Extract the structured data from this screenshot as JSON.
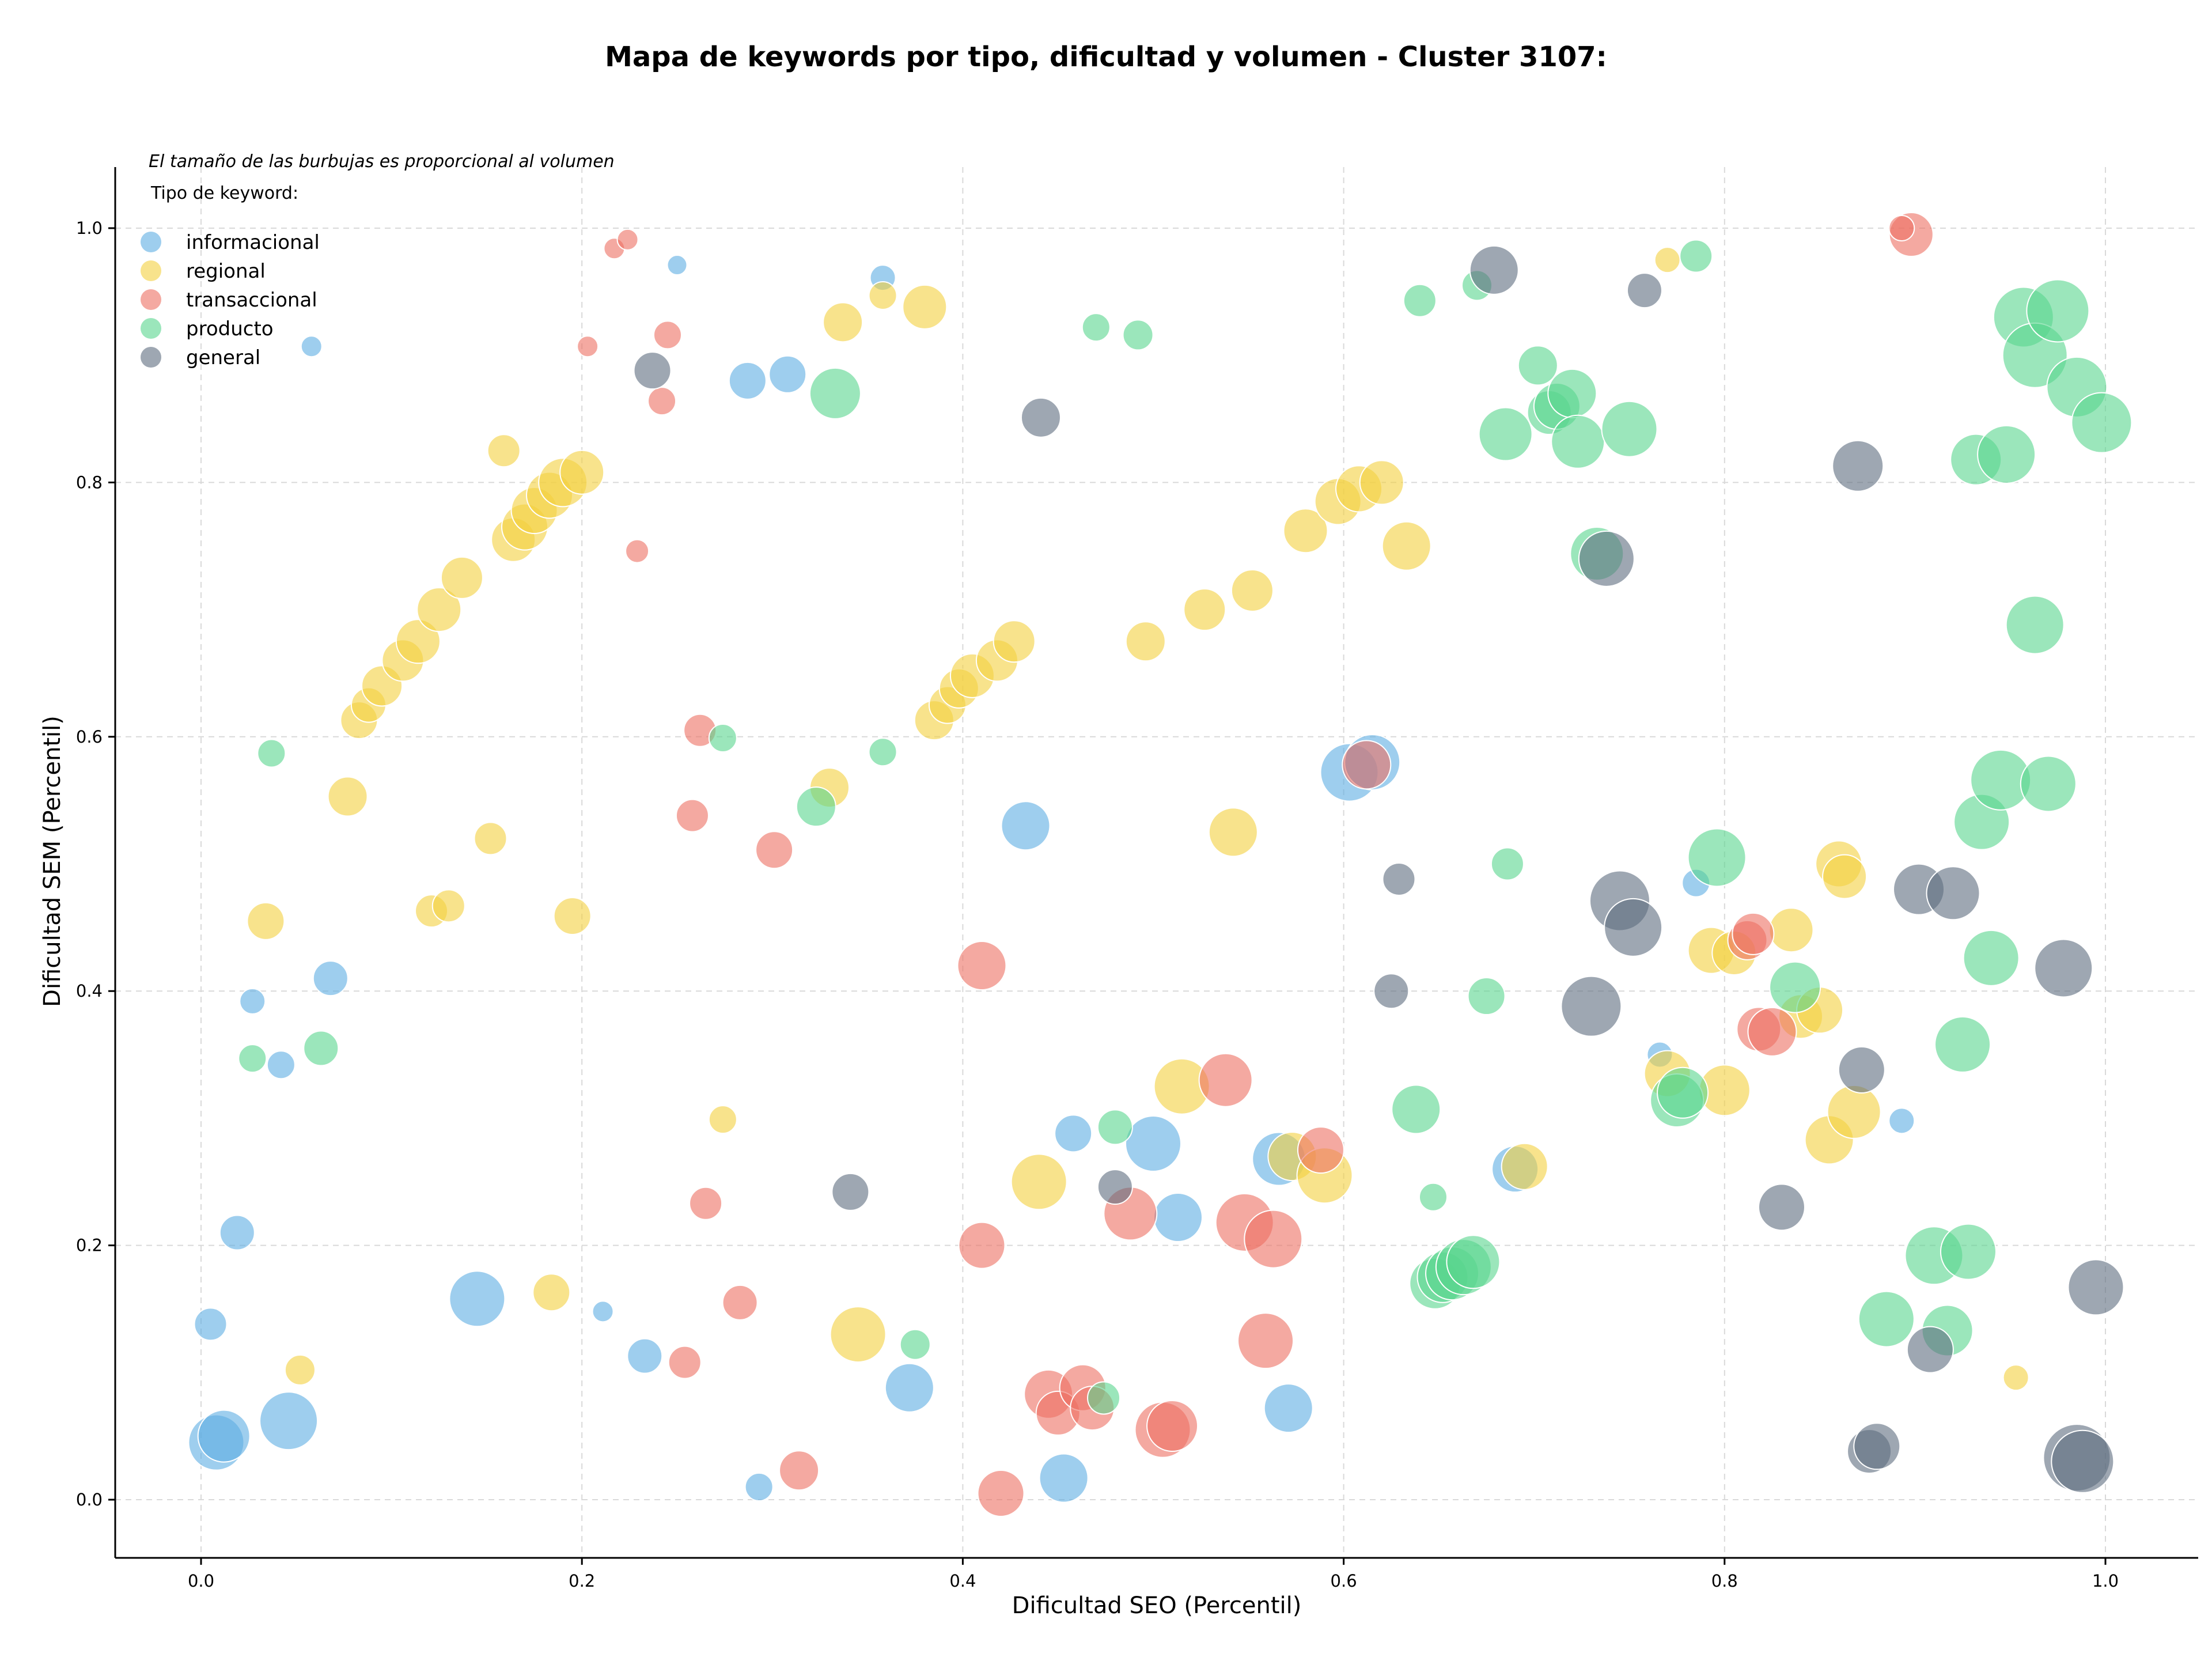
{
  "chart_data": {
    "type": "scatter",
    "title": "Mapa de keywords por tipo, dificultad y volumen - Cluster 3107:",
    "xlabel": "Dificultad SEO (Percentil)",
    "ylabel": "Dificultad SEM (Percentil)",
    "xlim": [
      -0.045,
      1.05
    ],
    "ylim": [
      -0.045,
      1.05
    ],
    "xticks": [
      "0.0",
      "0.2",
      "0.4",
      "0.6",
      "0.8",
      "1.0"
    ],
    "yticks": [
      "0.0",
      "0.2",
      "0.4",
      "0.6",
      "0.8",
      "1.0"
    ],
    "grid": true,
    "legend_position": "upper-left",
    "legend_note": "El tamaño de las burbujas es proporcional al volumen",
    "legend_title": "Tipo de keyword:",
    "series": [
      {
        "name": "informacional",
        "color": "#5DADE2",
        "points": [
          [
            0.008,
            0.045,
            48
          ],
          [
            0.012,
            0.05,
            45
          ],
          [
            0.046,
            0.062,
            50
          ],
          [
            0.145,
            0.158,
            48
          ],
          [
            0.005,
            0.138,
            28
          ],
          [
            0.019,
            0.21,
            30
          ],
          [
            0.027,
            0.392,
            22
          ],
          [
            0.042,
            0.342,
            24
          ],
          [
            0.068,
            0.41,
            30
          ],
          [
            0.058,
            0.907,
            18
          ],
          [
            0.25,
            0.971,
            17
          ],
          [
            0.287,
            0.88,
            32
          ],
          [
            0.308,
            0.885,
            32
          ],
          [
            0.358,
            0.961,
            22
          ],
          [
            0.211,
            0.148,
            18
          ],
          [
            0.233,
            0.113,
            30
          ],
          [
            0.293,
            0.01,
            24
          ],
          [
            0.372,
            0.088,
            42
          ],
          [
            0.433,
            0.53,
            42
          ],
          [
            0.453,
            0.017,
            42
          ],
          [
            0.458,
            0.288,
            32
          ],
          [
            0.5,
            0.28,
            48
          ],
          [
            0.513,
            0.222,
            42
          ],
          [
            0.566,
            0.268,
            46
          ],
          [
            0.571,
            0.072,
            42
          ],
          [
            0.603,
            0.572,
            50
          ],
          [
            0.615,
            0.58,
            48
          ],
          [
            0.69,
            0.26,
            40
          ],
          [
            0.766,
            0.35,
            22
          ],
          [
            0.785,
            0.485,
            24
          ],
          [
            0.893,
            0.298,
            22
          ]
        ]
      },
      {
        "name": "regional",
        "color": "#F4D03F",
        "points": [
          [
            0.034,
            0.455,
            32
          ],
          [
            0.052,
            0.102,
            26
          ],
          [
            0.077,
            0.553,
            34
          ],
          [
            0.083,
            0.613,
            32
          ],
          [
            0.088,
            0.625,
            30
          ],
          [
            0.095,
            0.64,
            35
          ],
          [
            0.106,
            0.66,
            36
          ],
          [
            0.114,
            0.675,
            38
          ],
          [
            0.125,
            0.7,
            38
          ],
          [
            0.137,
            0.725,
            36
          ],
          [
            0.152,
            0.52,
            28
          ],
          [
            0.159,
            0.825,
            28
          ],
          [
            0.164,
            0.755,
            38
          ],
          [
            0.17,
            0.765,
            40
          ],
          [
            0.175,
            0.778,
            40
          ],
          [
            0.183,
            0.79,
            40
          ],
          [
            0.19,
            0.8,
            42
          ],
          [
            0.2,
            0.808,
            38
          ],
          [
            0.121,
            0.463,
            28
          ],
          [
            0.13,
            0.467,
            28
          ],
          [
            0.195,
            0.459,
            32
          ],
          [
            0.184,
            0.163,
            32
          ],
          [
            0.274,
            0.299,
            24
          ],
          [
            0.33,
            0.56,
            34
          ],
          [
            0.337,
            0.926,
            34
          ],
          [
            0.358,
            0.947,
            24
          ],
          [
            0.38,
            0.938,
            38
          ],
          [
            0.345,
            0.13,
            48
          ],
          [
            0.385,
            0.613,
            34
          ],
          [
            0.392,
            0.625,
            32
          ],
          [
            0.398,
            0.638,
            34
          ],
          [
            0.405,
            0.648,
            38
          ],
          [
            0.418,
            0.66,
            36
          ],
          [
            0.427,
            0.675,
            36
          ],
          [
            0.44,
            0.25,
            48
          ],
          [
            0.496,
            0.675,
            34
          ],
          [
            0.515,
            0.325,
            48
          ],
          [
            0.527,
            0.7,
            36
          ],
          [
            0.542,
            0.525,
            42
          ],
          [
            0.552,
            0.715,
            36
          ],
          [
            0.58,
            0.762,
            38
          ],
          [
            0.597,
            0.785,
            40
          ],
          [
            0.608,
            0.795,
            40
          ],
          [
            0.62,
            0.8,
            38
          ],
          [
            0.633,
            0.75,
            42
          ],
          [
            0.573,
            0.27,
            42
          ],
          [
            0.59,
            0.255,
            48
          ],
          [
            0.695,
            0.262,
            40
          ],
          [
            0.77,
            0.975,
            22
          ],
          [
            0.77,
            0.335,
            40
          ],
          [
            0.793,
            0.432,
            40
          ],
          [
            0.8,
            0.322,
            44
          ],
          [
            0.805,
            0.43,
            38
          ],
          [
            0.835,
            0.448,
            38
          ],
          [
            0.84,
            0.38,
            38
          ],
          [
            0.85,
            0.385,
            40
          ],
          [
            0.855,
            0.283,
            42
          ],
          [
            0.86,
            0.5,
            40
          ],
          [
            0.863,
            0.49,
            38
          ],
          [
            0.868,
            0.305,
            46
          ],
          [
            0.953,
            0.096,
            22
          ]
        ]
      },
      {
        "name": "transaccional",
        "color": "#EC7063",
        "points": [
          [
            0.217,
            0.984,
            18
          ],
          [
            0.224,
            0.991,
            18
          ],
          [
            0.203,
            0.907,
            18
          ],
          [
            0.245,
            0.916,
            24
          ],
          [
            0.242,
            0.864,
            24
          ],
          [
            0.229,
            0.746,
            20
          ],
          [
            0.262,
            0.605,
            28
          ],
          [
            0.258,
            0.538,
            28
          ],
          [
            0.301,
            0.511,
            32
          ],
          [
            0.265,
            0.233,
            28
          ],
          [
            0.283,
            0.155,
            30
          ],
          [
            0.254,
            0.108,
            28
          ],
          [
            0.314,
            0.023,
            34
          ],
          [
            0.41,
            0.42,
            42
          ],
          [
            0.41,
            0.2,
            40
          ],
          [
            0.42,
            0.005,
            40
          ],
          [
            0.445,
            0.083,
            42
          ],
          [
            0.45,
            0.068,
            38
          ],
          [
            0.463,
            0.088,
            40
          ],
          [
            0.468,
            0.072,
            38
          ],
          [
            0.488,
            0.225,
            46
          ],
          [
            0.505,
            0.055,
            48
          ],
          [
            0.51,
            0.058,
            44
          ],
          [
            0.538,
            0.33,
            46
          ],
          [
            0.548,
            0.218,
            50
          ],
          [
            0.563,
            0.205,
            50
          ],
          [
            0.559,
            0.125,
            48
          ],
          [
            0.588,
            0.275,
            40
          ],
          [
            0.612,
            0.578,
            42
          ],
          [
            0.812,
            0.44,
            34
          ],
          [
            0.815,
            0.445,
            36
          ],
          [
            0.818,
            0.37,
            38
          ],
          [
            0.825,
            0.368,
            42
          ],
          [
            0.898,
            0.995,
            38
          ],
          [
            0.893,
            1.0,
            22
          ]
        ]
      },
      {
        "name": "producto",
        "color": "#58D68D",
        "points": [
          [
            0.037,
            0.587,
            24
          ],
          [
            0.027,
            0.347,
            24
          ],
          [
            0.063,
            0.355,
            30
          ],
          [
            0.274,
            0.599,
            24
          ],
          [
            0.333,
            0.87,
            44
          ],
          [
            0.323,
            0.545,
            34
          ],
          [
            0.358,
            0.588,
            24
          ],
          [
            0.375,
            0.122,
            26
          ],
          [
            0.47,
            0.922,
            24
          ],
          [
            0.492,
            0.916,
            26
          ],
          [
            0.48,
            0.293,
            30
          ],
          [
            0.474,
            0.08,
            28
          ],
          [
            0.64,
            0.943,
            28
          ],
          [
            0.67,
            0.955,
            26
          ],
          [
            0.685,
            0.838,
            46
          ],
          [
            0.702,
            0.892,
            34
          ],
          [
            0.708,
            0.855,
            38
          ],
          [
            0.712,
            0.86,
            40
          ],
          [
            0.72,
            0.87,
            42
          ],
          [
            0.723,
            0.832,
            46
          ],
          [
            0.75,
            0.842,
            48
          ],
          [
            0.733,
            0.744,
            46
          ],
          [
            0.785,
            0.978,
            28
          ],
          [
            0.638,
            0.307,
            42
          ],
          [
            0.647,
            0.238,
            24
          ],
          [
            0.675,
            0.396,
            32
          ],
          [
            0.686,
            0.5,
            28
          ],
          [
            0.648,
            0.17,
            44
          ],
          [
            0.652,
            0.175,
            44
          ],
          [
            0.657,
            0.178,
            46
          ],
          [
            0.663,
            0.183,
            48
          ],
          [
            0.668,
            0.187,
            46
          ],
          [
            0.775,
            0.314,
            46
          ],
          [
            0.778,
            0.32,
            44
          ],
          [
            0.796,
            0.505,
            50
          ],
          [
            0.837,
            0.403,
            44
          ],
          [
            0.885,
            0.142,
            48
          ],
          [
            0.91,
            0.192,
            50
          ],
          [
            0.917,
            0.133,
            44
          ],
          [
            0.928,
            0.195,
            48
          ],
          [
            0.925,
            0.358,
            48
          ],
          [
            0.935,
            0.533,
            48
          ],
          [
            0.94,
            0.426,
            48
          ],
          [
            0.945,
            0.566,
            52
          ],
          [
            0.97,
            0.563,
            48
          ],
          [
            0.932,
            0.818,
            44
          ],
          [
            0.948,
            0.822,
            50
          ],
          [
            0.957,
            0.93,
            52
          ],
          [
            0.963,
            0.9,
            56
          ],
          [
            0.975,
            0.935,
            54
          ],
          [
            0.985,
            0.875,
            52
          ],
          [
            0.998,
            0.847,
            52
          ],
          [
            0.963,
            0.688,
            50
          ]
        ]
      },
      {
        "name": "general",
        "color": "#5D6D7E",
        "points": [
          [
            0.237,
            0.888,
            32
          ],
          [
            0.441,
            0.851,
            34
          ],
          [
            0.341,
            0.242,
            32
          ],
          [
            0.48,
            0.246,
            30
          ],
          [
            0.629,
            0.488,
            28
          ],
          [
            0.625,
            0.4,
            30
          ],
          [
            0.679,
            0.967,
            42
          ],
          [
            0.758,
            0.951,
            30
          ],
          [
            0.738,
            0.74,
            48
          ],
          [
            0.73,
            0.388,
            52
          ],
          [
            0.745,
            0.471,
            52
          ],
          [
            0.752,
            0.45,
            50
          ],
          [
            0.87,
            0.813,
            44
          ],
          [
            0.872,
            0.338,
            40
          ],
          [
            0.83,
            0.23,
            40
          ],
          [
            0.902,
            0.48,
            44
          ],
          [
            0.92,
            0.477,
            46
          ],
          [
            0.978,
            0.418,
            50
          ],
          [
            0.876,
            0.038,
            38
          ],
          [
            0.88,
            0.042,
            40
          ],
          [
            0.908,
            0.118,
            40
          ],
          [
            0.985,
            0.033,
            58
          ],
          [
            0.988,
            0.03,
            54
          ],
          [
            0.995,
            0.167,
            48
          ]
        ]
      }
    ]
  }
}
